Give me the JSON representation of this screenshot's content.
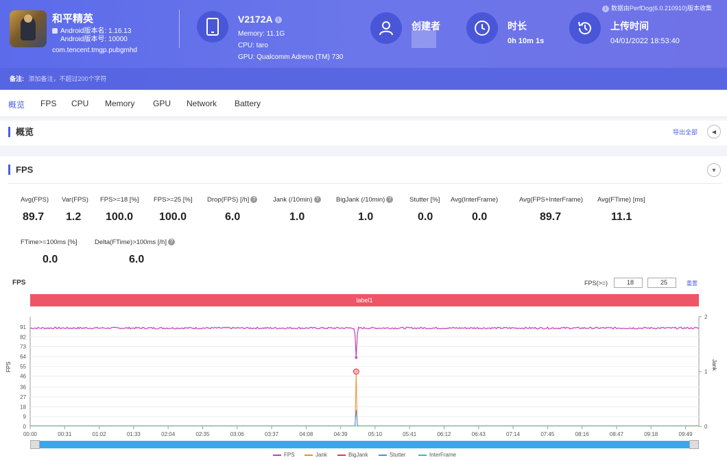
{
  "header": {
    "app_name": "和平精英",
    "android_version_name": "Android版本名: 1.16.13",
    "android_version_code": "Android版本号: 10000",
    "package": "com.tencent.tmgp.pubgmhd",
    "device": {
      "model": "V2172A",
      "memory": "Memory: 11.1G",
      "cpu": "CPU: taro",
      "gpu": "GPU: Qualcomm Adreno (TM) 730"
    },
    "creator_title": "创建者",
    "duration_title": "时长",
    "duration_value": "0h 10m 1s",
    "upload_title": "上传时间",
    "upload_value": "04/01/2022 18:53:40",
    "collect_note": "数据由PerfDog(6.0.210910)版本收集"
  },
  "remark": {
    "label": "备注:",
    "placeholder": "添加备注，不超过200个字符"
  },
  "tabs": [
    "概览",
    "FPS",
    "CPU",
    "Memory",
    "GPU",
    "Network",
    "Battery"
  ],
  "overview": {
    "title": "概览",
    "export_label": "导出全部"
  },
  "fps_section": {
    "title": "FPS",
    "stats_row1": [
      {
        "label": "Avg(FPS)",
        "value": "89.7",
        "help": false
      },
      {
        "label": "Var(FPS)",
        "value": "1.2",
        "help": false
      },
      {
        "label": "FPS>=18 [%]",
        "value": "100.0",
        "help": false
      },
      {
        "label": "FPS>=25 [%]",
        "value": "100.0",
        "help": false
      },
      {
        "label": "Drop(FPS) [/h]",
        "value": "6.0",
        "help": true
      },
      {
        "label": "Jank (/10min)",
        "value": "1.0",
        "help": true
      },
      {
        "label": "BigJank (/10min)",
        "value": "1.0",
        "help": true
      },
      {
        "label": "Stutter [%]",
        "value": "0.0",
        "help": false
      },
      {
        "label": "Avg(InterFrame)",
        "value": "0.0",
        "help": false
      },
      {
        "label": "Avg(FPS+InterFrame)",
        "value": "89.7",
        "help": false
      },
      {
        "label": "Avg(FTime) [ms]",
        "value": "11.1",
        "help": false
      }
    ],
    "stats_row2": [
      {
        "label": "FTime>=100ms [%]",
        "value": "0.0",
        "help": false
      },
      {
        "label": "Delta(FTime)>100ms [/h]",
        "value": "6.0",
        "help": true
      }
    ],
    "chart_title": "FPS",
    "threshold_label": "FPS(>=)",
    "threshold_1": "18",
    "threshold_2": "25",
    "reset_label": "重置",
    "label_bar": "label1"
  },
  "chart_data": {
    "type": "line",
    "ylabel": "FPS",
    "y2label": "Jank",
    "y_ticks": [
      0,
      9,
      18,
      27,
      36,
      46,
      55,
      64,
      73,
      82,
      91
    ],
    "y2_ticks": [
      0,
      1,
      2
    ],
    "ylim": [
      0,
      91
    ],
    "y2lim": [
      0,
      2
    ],
    "x_ticks": [
      "00:00",
      "00:31",
      "01:02",
      "01:33",
      "02:04",
      "02:35",
      "03:06",
      "03:37",
      "04:08",
      "04:39",
      "05:10",
      "05:41",
      "06:12",
      "06:43",
      "07:14",
      "07:45",
      "08:16",
      "08:47",
      "09:18",
      "09:49"
    ],
    "duration_s": 601,
    "series": [
      {
        "name": "FPS",
        "color": "#c43fb5",
        "baseline": 90,
        "dip_at_s": 293,
        "dip_value": 63
      },
      {
        "name": "Jank",
        "color": "#f28c28",
        "spike_at_s": 293,
        "spike_value": 1
      },
      {
        "name": "BigJank",
        "color": "#e8353f",
        "spike_at_s": 293,
        "spike_value": 1
      },
      {
        "name": "Stutter",
        "color": "#4a90e2",
        "spike_at_s": 293,
        "spike_value": 0.3
      },
      {
        "name": "InterFrame",
        "color": "#22c3c3",
        "value": 0
      }
    ],
    "grid": true,
    "legend_position": "bottom"
  },
  "colors": {
    "accent": "#4a5ee8",
    "header_bg": "#5b6bea",
    "label_bar": "#ee5566"
  }
}
